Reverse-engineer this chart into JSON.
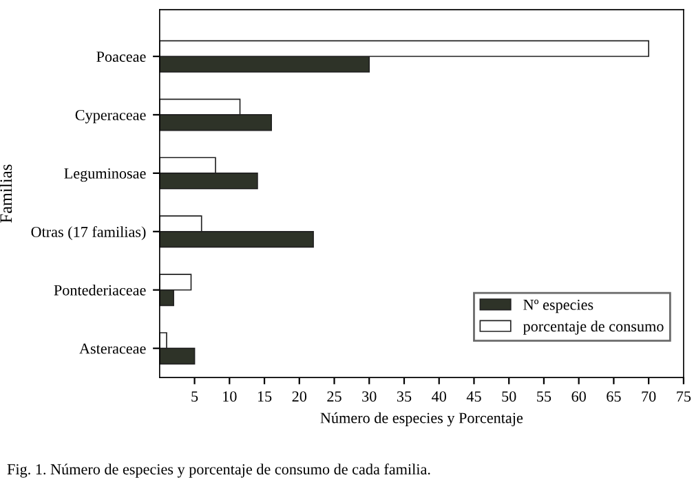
{
  "chart_data": {
    "type": "bar",
    "orientation": "horizontal",
    "categories": [
      "Poaceae",
      "Cyperaceae",
      "Leguminosae",
      "Otras (17 familias)",
      "Pontederiaceae",
      "Asteraceae"
    ],
    "series": [
      {
        "name": "Nº especies",
        "color": "#2e3328",
        "values": [
          30,
          16,
          14,
          22,
          2,
          5
        ]
      },
      {
        "name": "porcentaje de consumo",
        "color": "#ffffff",
        "values": [
          70,
          11.5,
          8,
          6,
          4.5,
          1
        ]
      }
    ],
    "xlim": [
      0,
      75
    ],
    "xticks": [
      5,
      10,
      15,
      20,
      25,
      30,
      35,
      40,
      45,
      50,
      55,
      60,
      65,
      70,
      75
    ],
    "xlabel": "Número de especies y Porcentaje",
    "ylabel": "Familias",
    "legend": "bottom right",
    "grid": false,
    "annotations": [
      "Fig. 1. Número de especies y porcentaje de consumo de cada familia."
    ]
  }
}
